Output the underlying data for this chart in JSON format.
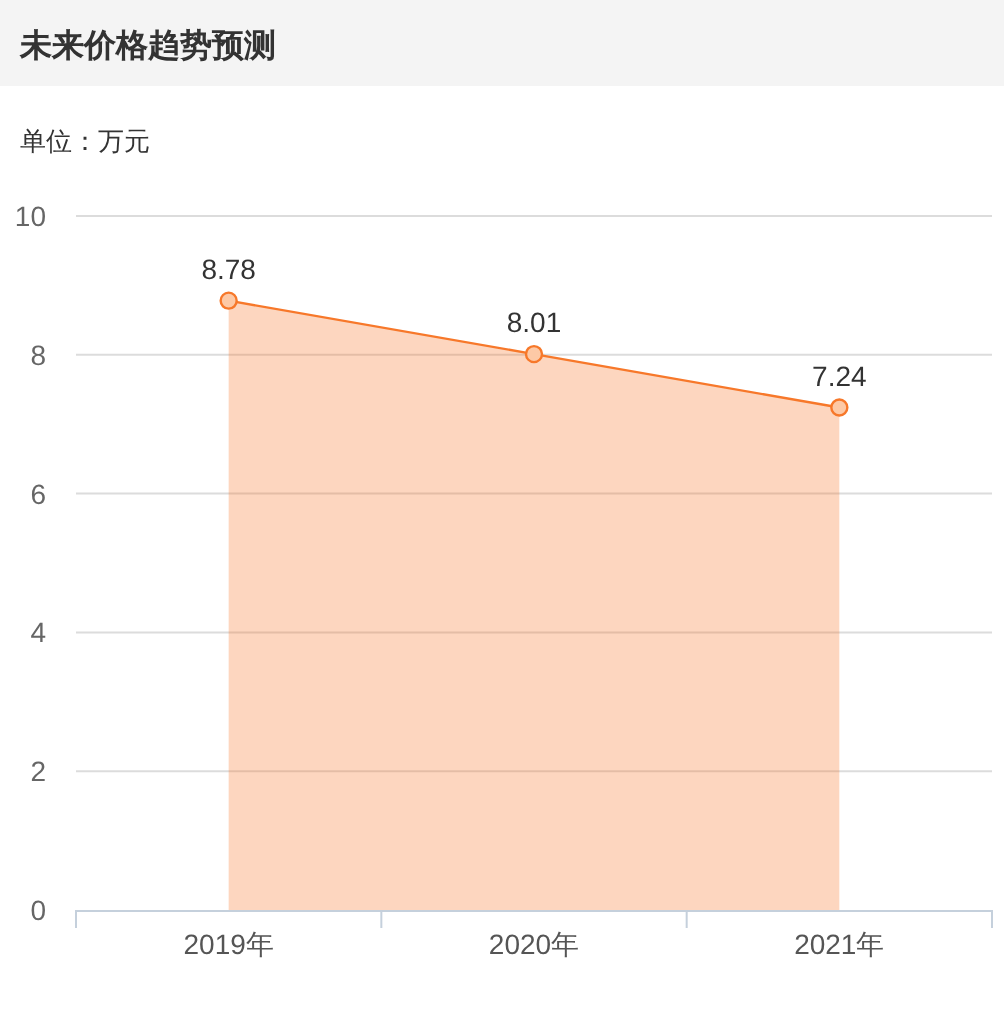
{
  "chart_data": {
    "type": "area",
    "title": "未来价格趋势预测",
    "subtitle": "单位：万元",
    "categories": [
      "2019年",
      "2020年",
      "2021年"
    ],
    "series": [
      {
        "color": "#f7782a",
        "values": [
          8.78,
          8.01,
          7.24
        ]
      }
    ],
    "ylim": [
      0,
      10
    ],
    "yticks": [
      0,
      2,
      4,
      6,
      8,
      10
    ],
    "grid": "y",
    "marker": "circle",
    "data_labels": true
  }
}
